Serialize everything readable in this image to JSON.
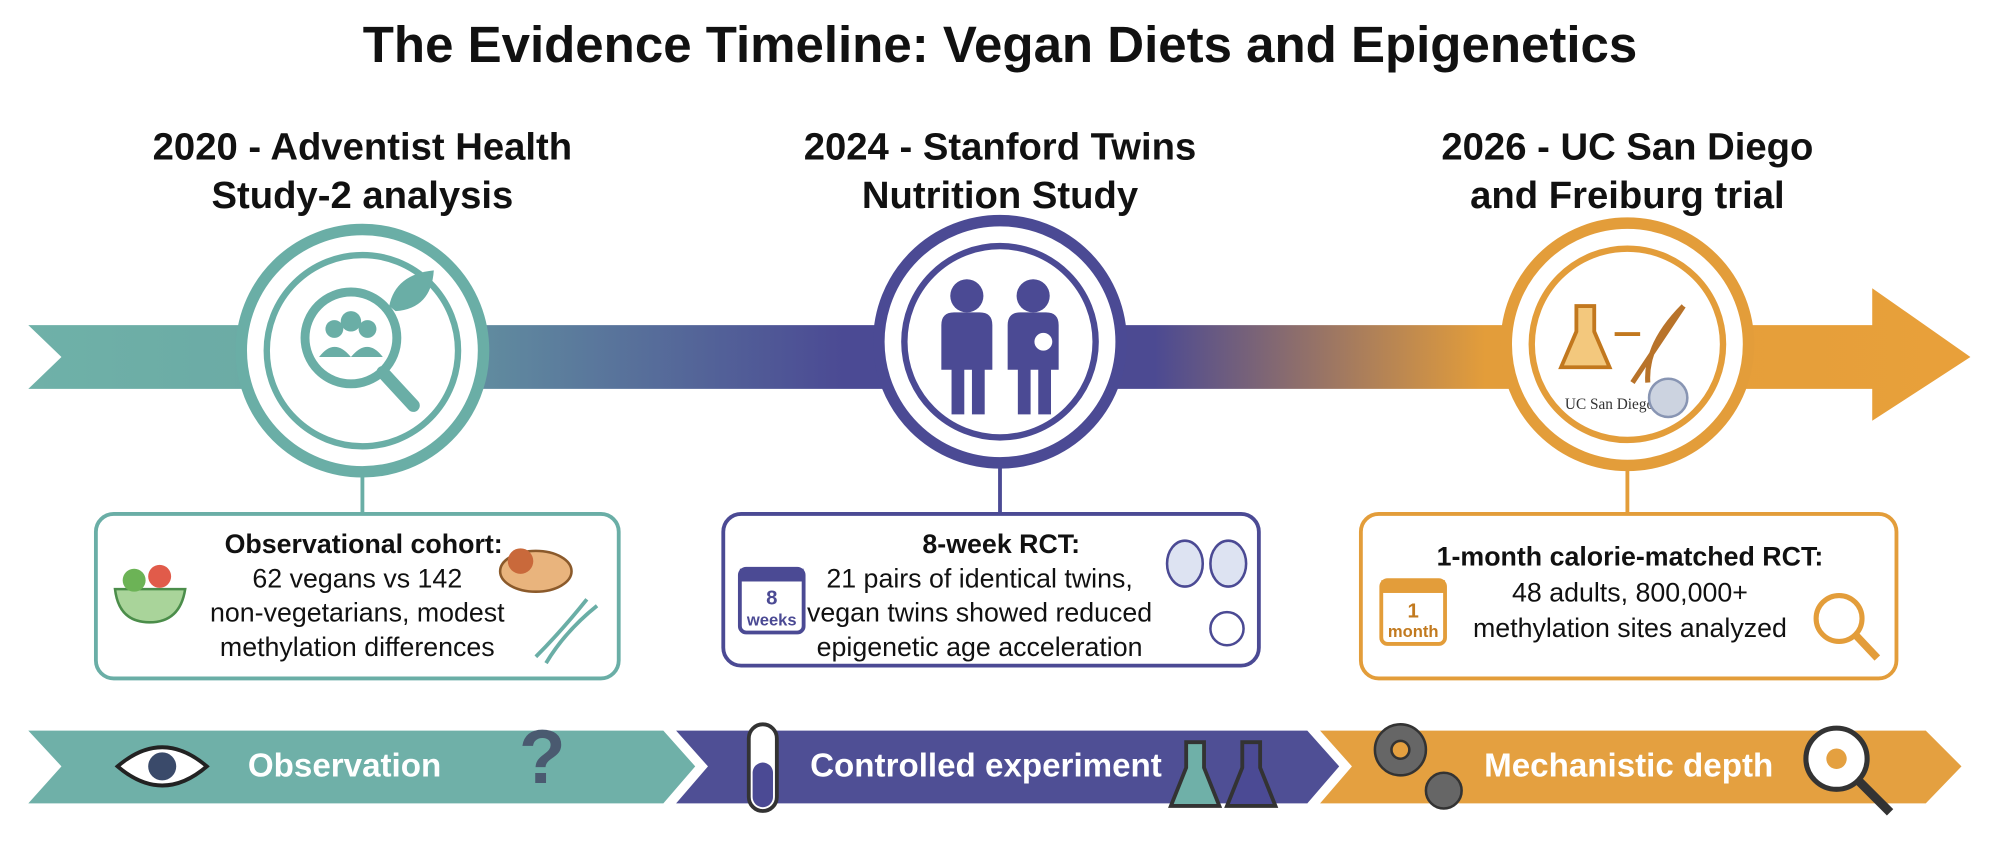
{
  "title": "The Evidence Timeline: Vegan Diets and Epigenetics",
  "milestones": [
    {
      "heading": [
        "2020 - Adventist Health",
        "Study-2 analysis"
      ],
      "box_title": "Observational cohort:",
      "box_lines": [
        "62 vegans vs 142",
        "non-vegetarians, modest",
        "methylation differences"
      ]
    },
    {
      "heading": [
        "2024 - Stanford Twins",
        "Nutrition Study"
      ],
      "box_title": "8-week RCT:",
      "box_lines": [
        "21 pairs of identical twins,",
        "vegan twins showed reduced",
        "epigenetic age acceleration"
      ],
      "calendar": [
        "8",
        "weeks"
      ]
    },
    {
      "heading": [
        "2026 - UC San Diego",
        "and Freiburg trial"
      ],
      "box_title": "1-month calorie-matched RCT:",
      "box_lines": [
        "48 adults, 800,000+",
        "methylation sites analyzed"
      ],
      "calendar": [
        "1",
        "month"
      ],
      "logo": "UC San Diego"
    }
  ],
  "stages": [
    "Observation",
    "Controlled experiment",
    "Mechanistic depth"
  ]
}
